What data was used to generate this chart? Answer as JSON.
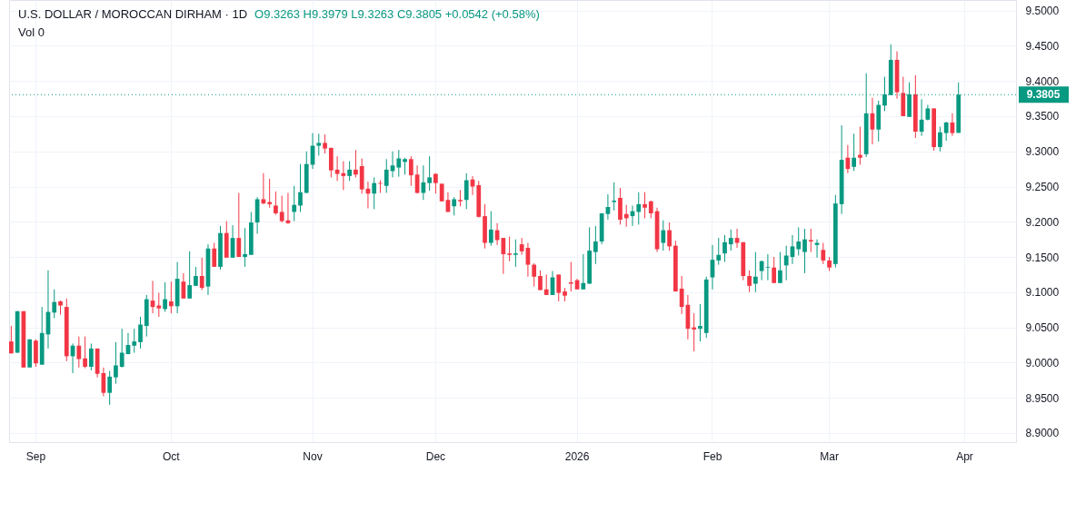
{
  "chart_data": {
    "type": "candlestick",
    "title": "U.S. DOLLAR / MOROCCAN DIRHAM · 1D",
    "annotations": [
      "O9.3263 H9.3979 L9.3263 C9.3805 +0.0542 (+0.58%)",
      "Vol 0"
    ],
    "categories": [
      null,
      null,
      null,
      null,
      "Sep",
      null,
      null,
      null,
      null,
      null,
      null,
      null,
      null,
      null,
      null,
      null,
      null,
      null,
      null,
      null,
      null,
      null,
      null,
      null,
      null,
      null,
      "Oct",
      null,
      null,
      null,
      null,
      null,
      null,
      null,
      null,
      null,
      null,
      null,
      null,
      null,
      null,
      null,
      null,
      null,
      null,
      null,
      null,
      null,
      null,
      "Nov",
      null,
      null,
      null,
      null,
      null,
      null,
      null,
      null,
      null,
      null,
      null,
      null,
      null,
      null,
      null,
      null,
      null,
      null,
      null,
      "Dec",
      null,
      null,
      null,
      null,
      null,
      null,
      null,
      null,
      null,
      null,
      null,
      null,
      null,
      null,
      null,
      null,
      null,
      null,
      null,
      null,
      null,
      null,
      "2026",
      null,
      null,
      null,
      null,
      null,
      null,
      null,
      null,
      null,
      null,
      null,
      null,
      null,
      null,
      null,
      null,
      null,
      null,
      null,
      null,
      null,
      "Feb",
      null,
      null,
      null,
      null,
      null,
      null,
      null,
      null,
      null,
      null,
      null,
      null,
      null,
      null,
      null,
      null,
      null,
      null,
      "Mar",
      null,
      null,
      null,
      null,
      null,
      null,
      null,
      null,
      null,
      null,
      null,
      null,
      null,
      null,
      null,
      null,
      null,
      null,
      null,
      null,
      null,
      "Apr",
      null,
      null,
      null,
      null,
      null,
      null,
      null,
      null
    ],
    "ohlc": [
      [
        9.03,
        9.052,
        9.013,
        9.013
      ],
      [
        9.014,
        9.073,
        9.014,
        9.073
      ],
      [
        9.073,
        9.073,
        8.993,
        8.993
      ],
      [
        8.993,
        9.033,
        8.993,
        9.033
      ],
      [
        9.031,
        9.033,
        8.994,
        8.999
      ],
      [
        8.997,
        9.079,
        8.997,
        9.042
      ],
      [
        9.04,
        9.131,
        9.02,
        9.072
      ],
      [
        9.071,
        9.104,
        9.063,
        9.086
      ],
      [
        9.087,
        9.088,
        9.068,
        9.081
      ],
      [
        9.079,
        9.091,
        9.002,
        9.009
      ],
      [
        9.009,
        9.027,
        8.985,
        9.024
      ],
      [
        9.024,
        9.037,
        8.993,
        9.005
      ],
      [
        9.006,
        9.037,
        8.992,
        8.994
      ],
      [
        8.994,
        9.027,
        8.989,
        9.02
      ],
      [
        9.02,
        9.02,
        8.979,
        8.984
      ],
      [
        8.985,
        8.993,
        8.952,
        8.957
      ],
      [
        8.957,
        8.988,
        8.94,
        8.98
      ],
      [
        8.979,
        9.029,
        8.97,
        8.996
      ],
      [
        8.994,
        9.048,
        8.993,
        9.014
      ],
      [
        9.012,
        9.042,
        9.012,
        9.025
      ],
      [
        9.024,
        9.048,
        9.014,
        9.03
      ],
      [
        9.029,
        9.065,
        9.02,
        9.054
      ],
      [
        9.052,
        9.096,
        9.037,
        9.09
      ],
      [
        9.088,
        9.116,
        9.07,
        9.079
      ],
      [
        9.081,
        9.099,
        9.065,
        9.077
      ],
      [
        9.076,
        9.114,
        9.072,
        9.09
      ],
      [
        9.087,
        9.115,
        9.07,
        9.08
      ],
      [
        9.08,
        9.143,
        9.07,
        9.119
      ],
      [
        9.115,
        9.127,
        9.091,
        9.091
      ],
      [
        9.091,
        9.158,
        9.091,
        9.11
      ],
      [
        9.109,
        9.136,
        9.109,
        9.123
      ],
      [
        9.123,
        9.149,
        9.103,
        9.106
      ],
      [
        9.108,
        9.168,
        9.096,
        9.162
      ],
      [
        9.162,
        9.17,
        9.136,
        9.136
      ],
      [
        9.136,
        9.194,
        9.132,
        9.184
      ],
      [
        9.184,
        9.201,
        9.149,
        9.149
      ],
      [
        9.149,
        9.195,
        9.149,
        9.177
      ],
      [
        9.177,
        9.241,
        9.15,
        9.15
      ],
      [
        9.15,
        9.191,
        9.136,
        9.154
      ],
      [
        9.153,
        9.214,
        9.153,
        9.199
      ],
      [
        9.199,
        9.235,
        9.183,
        9.232
      ],
      [
        9.232,
        9.269,
        9.225,
        9.226
      ],
      [
        9.228,
        9.261,
        9.22,
        9.225
      ],
      [
        9.223,
        9.243,
        9.21,
        9.212
      ],
      [
        9.214,
        9.237,
        9.199,
        9.201
      ],
      [
        9.202,
        9.241,
        9.197,
        9.198
      ],
      [
        9.214,
        9.251,
        9.201,
        9.224
      ],
      [
        9.223,
        9.282,
        9.214,
        9.242
      ],
      [
        9.241,
        9.3,
        9.241,
        9.282
      ],
      [
        9.281,
        9.326,
        9.275,
        9.308
      ],
      [
        9.308,
        9.325,
        9.294,
        9.312
      ],
      [
        9.312,
        9.324,
        9.297,
        9.304
      ],
      [
        9.305,
        9.305,
        9.263,
        9.273
      ],
      [
        9.274,
        9.293,
        9.258,
        9.268
      ],
      [
        9.269,
        9.286,
        9.245,
        9.265
      ],
      [
        9.265,
        9.286,
        9.258,
        9.274
      ],
      [
        9.274,
        9.302,
        9.263,
        9.267
      ],
      [
        9.279,
        9.29,
        9.24,
        9.246
      ],
      [
        9.247,
        9.257,
        9.219,
        9.24
      ],
      [
        9.24,
        9.263,
        9.218,
        9.255
      ],
      [
        9.255,
        9.259,
        9.241,
        9.254
      ],
      [
        9.251,
        9.289,
        9.241,
        9.274
      ],
      [
        9.272,
        9.3,
        9.263,
        9.28
      ],
      [
        9.277,
        9.302,
        9.264,
        9.29
      ],
      [
        9.285,
        9.291,
        9.267,
        9.289
      ],
      [
        9.289,
        9.293,
        9.251,
        9.266
      ],
      [
        9.267,
        9.28,
        9.24,
        9.241
      ],
      [
        9.241,
        9.28,
        9.231,
        9.256
      ],
      [
        9.255,
        9.293,
        9.244,
        9.263
      ],
      [
        9.268,
        9.269,
        9.24,
        9.255
      ],
      [
        9.254,
        9.254,
        9.229,
        9.229
      ],
      [
        9.231,
        9.242,
        9.214,
        9.214
      ],
      [
        9.222,
        9.235,
        9.209,
        9.232
      ],
      [
        9.231,
        9.245,
        9.222,
        9.229
      ],
      [
        9.231,
        9.269,
        9.218,
        9.259
      ],
      [
        9.26,
        9.265,
        9.238,
        9.25
      ],
      [
        9.252,
        9.258,
        9.206,
        9.207
      ],
      [
        9.208,
        9.225,
        9.162,
        9.17
      ],
      [
        9.17,
        9.215,
        9.166,
        9.189
      ],
      [
        9.188,
        9.198,
        9.167,
        9.174
      ],
      [
        9.177,
        9.177,
        9.126,
        9.154
      ],
      [
        9.155,
        9.179,
        9.144,
        9.153
      ],
      [
        9.153,
        9.175,
        9.136,
        9.155
      ],
      [
        9.168,
        9.177,
        9.153,
        9.158
      ],
      [
        9.163,
        9.17,
        9.122,
        9.139
      ],
      [
        9.139,
        9.141,
        9.108,
        9.122
      ],
      [
        9.123,
        9.131,
        9.103,
        9.103
      ],
      [
        9.104,
        9.125,
        9.096,
        9.096
      ],
      [
        9.096,
        9.13,
        9.096,
        9.121
      ],
      [
        9.125,
        9.125,
        9.087,
        9.099
      ],
      [
        9.101,
        9.106,
        9.087,
        9.095
      ],
      [
        9.114,
        9.143,
        9.101,
        9.112
      ],
      [
        9.117,
        9.119,
        9.104,
        9.104
      ],
      [
        9.104,
        9.154,
        9.104,
        9.113
      ],
      [
        9.112,
        9.192,
        9.112,
        9.159
      ],
      [
        9.157,
        9.194,
        9.14,
        9.172
      ],
      [
        9.172,
        9.212,
        9.168,
        9.212
      ],
      [
        9.211,
        9.239,
        9.203,
        9.221
      ],
      [
        9.228,
        9.256,
        9.216,
        9.23
      ],
      [
        9.234,
        9.248,
        9.196,
        9.203
      ],
      [
        9.211,
        9.224,
        9.193,
        9.205
      ],
      [
        9.208,
        9.223,
        9.194,
        9.215
      ],
      [
        9.214,
        9.242,
        9.196,
        9.225
      ],
      [
        9.225,
        9.242,
        9.205,
        9.22
      ],
      [
        9.229,
        9.23,
        9.205,
        9.212
      ],
      [
        9.215,
        9.22,
        9.157,
        9.161
      ],
      [
        9.17,
        9.202,
        9.159,
        9.188
      ],
      [
        9.188,
        9.199,
        9.159,
        9.165
      ],
      [
        9.166,
        9.173,
        9.101,
        9.101
      ],
      [
        9.105,
        9.123,
        9.069,
        9.079
      ],
      [
        9.082,
        9.096,
        9.033,
        9.048
      ],
      [
        9.05,
        9.07,
        9.016,
        9.047
      ],
      [
        9.048,
        9.083,
        9.03,
        9.052
      ],
      [
        9.042,
        9.122,
        9.035,
        9.118
      ],
      [
        9.121,
        9.167,
        9.104,
        9.146
      ],
      [
        9.145,
        9.177,
        9.139,
        9.153
      ],
      [
        9.155,
        9.181,
        9.143,
        9.171
      ],
      [
        9.168,
        9.189,
        9.159,
        9.177
      ],
      [
        9.177,
        9.19,
        9.163,
        9.17
      ],
      [
        9.171,
        9.171,
        9.117,
        9.123
      ],
      [
        9.123,
        9.131,
        9.1,
        9.109
      ],
      [
        9.112,
        9.157,
        9.1,
        9.122
      ],
      [
        9.13,
        9.145,
        9.117,
        9.144
      ],
      [
        9.135,
        9.154,
        9.117,
        9.136
      ],
      [
        9.135,
        9.15,
        9.113,
        9.113
      ],
      [
        9.113,
        9.157,
        9.113,
        9.131
      ],
      [
        9.138,
        9.166,
        9.117,
        9.152
      ],
      [
        9.15,
        9.181,
        9.14,
        9.165
      ],
      [
        9.161,
        9.192,
        9.152,
        9.172
      ],
      [
        9.157,
        9.19,
        9.127,
        9.175
      ],
      [
        9.174,
        9.19,
        9.157,
        9.172
      ],
      [
        9.167,
        9.175,
        9.149,
        9.17
      ],
      [
        9.16,
        9.17,
        9.14,
        9.145
      ],
      [
        9.145,
        9.15,
        9.13,
        9.135
      ],
      [
        9.14,
        9.238,
        9.135,
        9.226
      ],
      [
        9.225,
        9.337,
        9.211,
        9.288
      ],
      [
        9.291,
        9.309,
        9.269,
        9.275
      ],
      [
        9.278,
        9.325,
        9.272,
        9.291
      ],
      [
        9.295,
        9.335,
        9.281,
        9.291
      ],
      [
        9.296,
        9.411,
        9.292,
        9.354
      ],
      [
        9.354,
        9.376,
        9.31,
        9.331
      ],
      [
        9.331,
        9.372,
        9.314,
        9.366
      ],
      [
        9.365,
        9.406,
        9.357,
        9.381
      ],
      [
        9.38,
        9.452,
        9.38,
        9.43
      ],
      [
        9.43,
        9.442,
        9.375,
        9.384
      ],
      [
        9.383,
        9.406,
        9.35,
        9.35
      ],
      [
        9.349,
        9.398,
        9.349,
        9.381
      ],
      [
        9.381,
        9.408,
        9.319,
        9.328
      ],
      [
        9.328,
        9.374,
        9.322,
        9.345
      ],
      [
        9.345,
        9.366,
        9.344,
        9.361
      ],
      [
        9.361,
        9.361,
        9.301,
        9.306
      ],
      [
        9.306,
        9.335,
        9.3,
        9.327
      ],
      [
        9.326,
        9.342,
        9.315,
        9.341
      ],
      [
        9.341,
        9.354,
        9.322,
        9.326
      ],
      [
        9.3263,
        9.3979,
        9.3263,
        9.3805
      ],
      null,
      null,
      null,
      null,
      null,
      null,
      null,
      null,
      null
    ],
    "colors": [
      "#f23645",
      "#089981",
      "#f23645",
      "#089981",
      "#f23645",
      "#089981",
      "#089981",
      "#089981",
      "#f23645",
      "#f23645",
      "#089981",
      "#f23645",
      "#f23645",
      "#089981",
      "#f23645",
      "#f23645",
      "#089981",
      "#089981",
      "#089981",
      "#089981",
      "#089981",
      "#089981",
      "#089981",
      "#f23645",
      "#f23645",
      "#089981",
      "#f23645",
      "#089981",
      "#f23645",
      "#089981",
      "#089981",
      "#f23645",
      "#089981",
      "#f23645",
      "#089981",
      "#f23645",
      "#089981",
      "#f23645",
      "#089981",
      "#089981",
      "#089981",
      "#f23645",
      "#f23645",
      "#f23645",
      "#f23645",
      "#f23645",
      "#089981",
      "#089981",
      "#089981",
      "#089981",
      "#089981",
      "#f23645",
      "#f23645",
      "#f23645",
      "#f23645",
      "#089981",
      "#f23645",
      "#f23645",
      "#f23645",
      "#089981",
      "#f23645",
      "#089981",
      "#089981",
      "#089981",
      "#089981",
      "#f23645",
      "#f23645",
      "#089981",
      "#089981",
      "#f23645",
      "#f23645",
      "#f23645",
      "#089981",
      "#f23645",
      "#089981",
      "#f23645",
      "#f23645",
      "#f23645",
      "#089981",
      "#f23645",
      "#f23645",
      "#f23645",
      "#089981",
      "#f23645",
      "#f23645",
      "#f23645",
      "#f23645",
      "#f23645",
      "#089981",
      "#f23645",
      "#f23645",
      "#f23645",
      "#f23645",
      "#089981",
      "#089981",
      "#089981",
      "#089981",
      "#089981",
      "#089981",
      "#f23645",
      "#f23645",
      "#089981",
      "#089981",
      "#f23645",
      "#f23645",
      "#f23645",
      "#089981",
      "#f23645",
      "#f23645",
      "#f23645",
      "#f23645",
      "#f23645",
      "#089981",
      "#089981",
      "#089981",
      "#089981",
      "#089981",
      "#089981",
      "#f23645",
      "#f23645",
      "#f23645",
      "#089981",
      "#089981",
      "#089981",
      "#f23645",
      "#089981",
      "#089981",
      "#089981",
      "#089981",
      "#089981",
      "#f23645",
      "#089981",
      "#f23645",
      "#f23645",
      "#089981",
      "#089981",
      "#f23645",
      "#089981",
      "#f23645",
      "#089981",
      "#f23645",
      "#089981",
      "#089981",
      "#089981",
      "#f23645",
      "#f23645",
      "#089981",
      "#f23645",
      "#089981",
      "#089981",
      "#f23645",
      "#089981",
      "#089981",
      "#f23645",
      "#089981",
      null,
      null,
      null,
      null,
      null,
      null,
      null,
      null,
      null
    ],
    "ylim": [
      8.887,
      9.515
    ],
    "yticks": [
      {
        "value": 8.9,
        "label": "8.9000"
      },
      {
        "value": 8.95,
        "label": "8.9500"
      },
      {
        "value": 9.0,
        "label": "9.0000"
      },
      {
        "value": 9.05,
        "label": "9.0500"
      },
      {
        "value": 9.1,
        "label": "9.1000"
      },
      {
        "value": 9.15,
        "label": "9.1500"
      },
      {
        "value": 9.2,
        "label": "9.2000"
      },
      {
        "value": 9.25,
        "label": "9.2500"
      },
      {
        "value": 9.3,
        "label": "9.3000"
      },
      {
        "value": 9.35,
        "label": "9.3500"
      },
      {
        "value": 9.4,
        "label": "9.4000"
      },
      {
        "value": 9.45,
        "label": "9.4500"
      },
      {
        "value": 9.5,
        "label": "9.5000"
      }
    ],
    "grid": true,
    "ref_lines": [
      {
        "axis": "y",
        "value": 9.3805,
        "label": "9.3805",
        "color": "#089981",
        "line_style": "dotted"
      }
    ]
  }
}
